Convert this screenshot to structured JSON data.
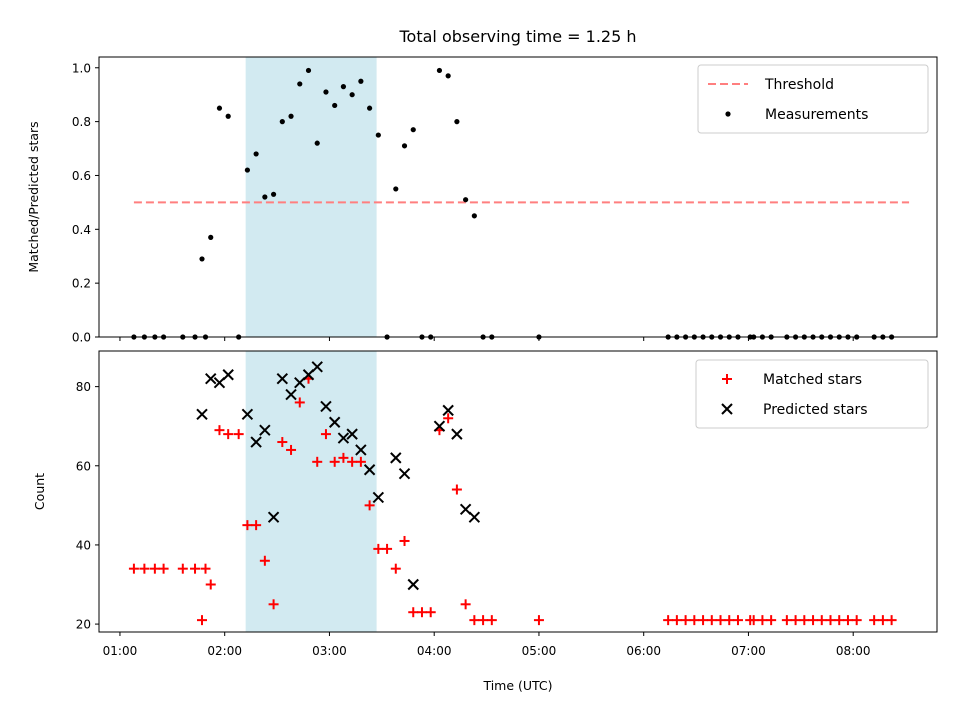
{
  "figure": {
    "title": "Total observing time = 1.25 h",
    "xlabel": "Time (UTC)",
    "x_ticks": [
      "01:00",
      "02:00",
      "03:00",
      "04:00",
      "05:00",
      "06:00",
      "07:00",
      "08:00"
    ],
    "shaded_span": {
      "start": "02:12",
      "end": "03:27",
      "color": "#add8e6"
    }
  },
  "chart_data": [
    {
      "type": "scatter",
      "title": "Total observing time = 1.25 h",
      "xlabel": "Time (UTC)",
      "ylabel": "Matched/Predicted stars",
      "xlim": [
        "00:48",
        "08:48"
      ],
      "ylim": [
        0,
        1.04
      ],
      "y_ticks": [
        "0.0",
        "0.2",
        "0.4",
        "0.6",
        "0.8",
        "1.0"
      ],
      "legend_position": "upper-right",
      "threshold": {
        "name": "Threshold",
        "value": 0.5,
        "from": "01:08",
        "to": "08:32",
        "color": "#ff7f7f",
        "style": "dashed"
      },
      "series": [
        {
          "name": "Measurements",
          "color": "#000000",
          "marker": "dot",
          "points": [
            [
              "01:08",
              0
            ],
            [
              "01:14",
              0
            ],
            [
              "01:20",
              0
            ],
            [
              "01:25",
              0
            ],
            [
              "01:36",
              0
            ],
            [
              "01:43",
              0
            ],
            [
              "01:49",
              0
            ],
            [
              "01:47",
              0.29
            ],
            [
              "01:52",
              0.37
            ],
            [
              "01:57",
              0.85
            ],
            [
              "02:02",
              0.82
            ],
            [
              "02:08",
              0
            ],
            [
              "02:13",
              0.62
            ],
            [
              "02:18",
              0.68
            ],
            [
              "02:23",
              0.52
            ],
            [
              "02:28",
              0.53
            ],
            [
              "02:33",
              0.8
            ],
            [
              "02:38",
              0.82
            ],
            [
              "02:43",
              0.94
            ],
            [
              "02:48",
              0.99
            ],
            [
              "02:53",
              0.72
            ],
            [
              "02:58",
              0.91
            ],
            [
              "03:03",
              0.86
            ],
            [
              "03:08",
              0.93
            ],
            [
              "03:13",
              0.9
            ],
            [
              "03:18",
              0.95
            ],
            [
              "03:23",
              0.85
            ],
            [
              "03:28",
              0.75
            ],
            [
              "03:33",
              0
            ],
            [
              "03:38",
              0.55
            ],
            [
              "03:43",
              0.71
            ],
            [
              "03:48",
              0.77
            ],
            [
              "03:53",
              0
            ],
            [
              "03:58",
              0
            ],
            [
              "04:03",
              0.99
            ],
            [
              "04:08",
              0.97
            ],
            [
              "04:13",
              0.8
            ],
            [
              "04:18",
              0.51
            ],
            [
              "04:23",
              0.45
            ],
            [
              "04:28",
              0
            ],
            [
              "04:33",
              0
            ],
            [
              "05:00",
              0
            ],
            [
              "06:14",
              0
            ],
            [
              "06:19",
              0
            ],
            [
              "06:24",
              0
            ],
            [
              "06:29",
              0
            ],
            [
              "06:34",
              0
            ],
            [
              "06:39",
              0
            ],
            [
              "06:44",
              0
            ],
            [
              "06:49",
              0
            ],
            [
              "06:54",
              0
            ],
            [
              "07:01",
              0
            ],
            [
              "07:03",
              0
            ],
            [
              "07:08",
              0
            ],
            [
              "07:13",
              0
            ],
            [
              "07:22",
              0
            ],
            [
              "07:27",
              0
            ],
            [
              "07:32",
              0
            ],
            [
              "07:37",
              0
            ],
            [
              "07:42",
              0
            ],
            [
              "07:47",
              0
            ],
            [
              "07:52",
              0
            ],
            [
              "07:57",
              0
            ],
            [
              "08:02",
              0
            ],
            [
              "08:12",
              0
            ],
            [
              "08:17",
              0
            ],
            [
              "08:22",
              0
            ]
          ]
        }
      ]
    },
    {
      "type": "scatter",
      "xlabel": "Time (UTC)",
      "ylabel": "Count",
      "xlim": [
        "00:48",
        "08:48"
      ],
      "ylim": [
        18,
        89
      ],
      "y_ticks": [
        "20",
        "40",
        "60",
        "80"
      ],
      "legend_position": "upper-right",
      "series": [
        {
          "name": "Matched stars",
          "color": "#ff0000",
          "marker": "plus",
          "points": [
            [
              "01:08",
              34
            ],
            [
              "01:14",
              34
            ],
            [
              "01:20",
              34
            ],
            [
              "01:25",
              34
            ],
            [
              "01:36",
              34
            ],
            [
              "01:43",
              34
            ],
            [
              "01:49",
              34
            ],
            [
              "01:47",
              21
            ],
            [
              "01:52",
              30
            ],
            [
              "01:57",
              69
            ],
            [
              "02:02",
              68
            ],
            [
              "02:08",
              68
            ],
            [
              "02:13",
              45
            ],
            [
              "02:18",
              45
            ],
            [
              "02:23",
              36
            ],
            [
              "02:28",
              25
            ],
            [
              "02:33",
              66
            ],
            [
              "02:38",
              64
            ],
            [
              "02:43",
              76
            ],
            [
              "02:48",
              82
            ],
            [
              "02:53",
              61
            ],
            [
              "02:58",
              68
            ],
            [
              "03:03",
              61
            ],
            [
              "03:08",
              62
            ],
            [
              "03:13",
              61
            ],
            [
              "03:18",
              61
            ],
            [
              "03:23",
              50
            ],
            [
              "03:28",
              39
            ],
            [
              "03:33",
              39
            ],
            [
              "03:38",
              34
            ],
            [
              "03:43",
              41
            ],
            [
              "03:48",
              23
            ],
            [
              "03:53",
              23
            ],
            [
              "03:58",
              23
            ],
            [
              "04:03",
              69
            ],
            [
              "04:08",
              72
            ],
            [
              "04:13",
              54
            ],
            [
              "04:18",
              25
            ],
            [
              "04:23",
              21
            ],
            [
              "04:28",
              21
            ],
            [
              "04:33",
              21
            ],
            [
              "05:00",
              21
            ],
            [
              "06:14",
              21
            ],
            [
              "06:19",
              21
            ],
            [
              "06:24",
              21
            ],
            [
              "06:29",
              21
            ],
            [
              "06:34",
              21
            ],
            [
              "06:39",
              21
            ],
            [
              "06:44",
              21
            ],
            [
              "06:49",
              21
            ],
            [
              "06:54",
              21
            ],
            [
              "07:01",
              21
            ],
            [
              "07:03",
              21
            ],
            [
              "07:08",
              21
            ],
            [
              "07:13",
              21
            ],
            [
              "07:22",
              21
            ],
            [
              "07:27",
              21
            ],
            [
              "07:32",
              21
            ],
            [
              "07:37",
              21
            ],
            [
              "07:42",
              21
            ],
            [
              "07:47",
              21
            ],
            [
              "07:52",
              21
            ],
            [
              "07:57",
              21
            ],
            [
              "08:02",
              21
            ],
            [
              "08:12",
              21
            ],
            [
              "08:17",
              21
            ],
            [
              "08:22",
              21
            ]
          ]
        },
        {
          "name": "Predicted stars",
          "color": "#000000",
          "marker": "x",
          "points": [
            [
              "01:47",
              73
            ],
            [
              "01:52",
              82
            ],
            [
              "01:57",
              81
            ],
            [
              "02:02",
              83
            ],
            [
              "02:13",
              73
            ],
            [
              "02:18",
              66
            ],
            [
              "02:23",
              69
            ],
            [
              "02:28",
              47
            ],
            [
              "02:33",
              82
            ],
            [
              "02:38",
              78
            ],
            [
              "02:43",
              81
            ],
            [
              "02:48",
              83
            ],
            [
              "02:53",
              85
            ],
            [
              "02:58",
              75
            ],
            [
              "03:03",
              71
            ],
            [
              "03:08",
              67
            ],
            [
              "03:13",
              68
            ],
            [
              "03:18",
              64
            ],
            [
              "03:23",
              59
            ],
            [
              "03:28",
              52
            ],
            [
              "03:38",
              62
            ],
            [
              "03:43",
              58
            ],
            [
              "03:48",
              30
            ],
            [
              "04:03",
              70
            ],
            [
              "04:08",
              74
            ],
            [
              "04:13",
              68
            ],
            [
              "04:18",
              49
            ],
            [
              "04:23",
              47
            ]
          ]
        }
      ]
    }
  ]
}
